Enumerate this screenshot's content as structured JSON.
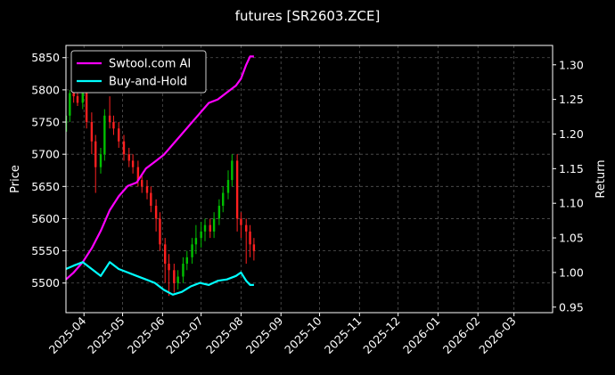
{
  "chart_data": {
    "type": "line",
    "title": "futures [SR2603.ZCE]",
    "ylabel": "Price",
    "y2label": "Return",
    "x_ticks": [
      "2025-04",
      "2025-05",
      "2025-06",
      "2025-07",
      "2025-08",
      "2025-09",
      "2025-10",
      "2025-11",
      "2025-12",
      "2026-01",
      "2026-02",
      "2026-03"
    ],
    "xlim": [
      "2025-03-18",
      "2026-03-31"
    ],
    "ylim": [
      5454,
      5869
    ],
    "y_ticks": [
      5500,
      5550,
      5600,
      5650,
      5700,
      5750,
      5800,
      5850
    ],
    "y2lim": [
      0.942,
      1.328
    ],
    "y2_ticks": [
      0.95,
      1.0,
      1.05,
      1.1,
      1.15,
      1.2,
      1.25,
      1.3
    ],
    "grid": true,
    "legend_position": "top-left",
    "candles": {
      "dates": [
        "2025-03-18",
        "2025-03-21",
        "2025-03-24",
        "2025-03-27",
        "2025-03-31",
        "2025-04-03",
        "2025-04-07",
        "2025-04-10",
        "2025-04-14",
        "2025-04-17",
        "2025-04-21",
        "2025-04-24",
        "2025-04-28",
        "2025-05-02",
        "2025-05-06",
        "2025-05-09",
        "2025-05-13",
        "2025-05-16",
        "2025-05-20",
        "2025-05-23",
        "2025-05-27",
        "2025-05-30",
        "2025-06-03",
        "2025-06-06",
        "2025-06-10",
        "2025-06-13",
        "2025-06-17",
        "2025-06-20",
        "2025-06-24",
        "2025-06-27",
        "2025-07-01",
        "2025-07-04",
        "2025-07-08",
        "2025-07-11",
        "2025-07-15",
        "2025-07-18",
        "2025-07-22",
        "2025-07-25",
        "2025-07-29",
        "2025-08-01",
        "2025-08-05",
        "2025-08-08",
        "2025-08-11"
      ],
      "open": [
        5735,
        5760,
        5795,
        5790,
        5780,
        5800,
        5750,
        5720,
        5680,
        5700,
        5760,
        5750,
        5740,
        5720,
        5700,
        5690,
        5680,
        5660,
        5650,
        5640,
        5620,
        5600,
        5560,
        5530,
        5520,
        5500,
        5510,
        5530,
        5540,
        5560,
        5570,
        5580,
        5590,
        5580,
        5600,
        5620,
        5640,
        5660,
        5690,
        5600,
        5590,
        5580,
        5560
      ],
      "close": [
        5760,
        5795,
        5790,
        5780,
        5800,
        5750,
        5720,
        5680,
        5700,
        5760,
        5750,
        5740,
        5720,
        5700,
        5690,
        5680,
        5660,
        5650,
        5640,
        5620,
        5600,
        5560,
        5530,
        5520,
        5500,
        5510,
        5530,
        5540,
        5560,
        5570,
        5580,
        5590,
        5580,
        5600,
        5620,
        5640,
        5660,
        5690,
        5600,
        5590,
        5580,
        5560,
        5550
      ],
      "high": [
        5770,
        5800,
        5815,
        5800,
        5810,
        5810,
        5765,
        5730,
        5710,
        5770,
        5790,
        5760,
        5750,
        5730,
        5710,
        5700,
        5690,
        5670,
        5660,
        5650,
        5630,
        5610,
        5570,
        5545,
        5530,
        5520,
        5540,
        5550,
        5570,
        5590,
        5595,
        5600,
        5600,
        5610,
        5630,
        5650,
        5675,
        5700,
        5700,
        5610,
        5600,
        5590,
        5570
      ],
      "low": [
        5725,
        5750,
        5780,
        5775,
        5770,
        5740,
        5700,
        5640,
        5670,
        5690,
        5740,
        5730,
        5710,
        5690,
        5680,
        5670,
        5650,
        5640,
        5630,
        5610,
        5580,
        5550,
        5500,
        5480,
        5485,
        5490,
        5500,
        5520,
        5530,
        5545,
        5555,
        5565,
        5570,
        5570,
        5590,
        5610,
        5630,
        5650,
        5580,
        5570,
        5530,
        5540,
        5535
      ]
    },
    "series": [
      {
        "name": "Swtool.com AI",
        "color": "#ff00ff",
        "dates": [
          "2025-03-18",
          "2025-03-24",
          "2025-03-31",
          "2025-04-07",
          "2025-04-14",
          "2025-04-21",
          "2025-04-28",
          "2025-05-05",
          "2025-05-12",
          "2025-05-19",
          "2025-05-26",
          "2025-06-02",
          "2025-06-09",
          "2025-06-16",
          "2025-06-23",
          "2025-06-30",
          "2025-07-07",
          "2025-07-14",
          "2025-07-21",
          "2025-07-28",
          "2025-08-01",
          "2025-08-05",
          "2025-08-08",
          "2025-08-11"
        ],
        "values": [
          0.99,
          1.0,
          1.015,
          1.035,
          1.06,
          1.09,
          1.11,
          1.125,
          1.13,
          1.15,
          1.16,
          1.17,
          1.185,
          1.2,
          1.215,
          1.23,
          1.245,
          1.25,
          1.26,
          1.27,
          1.28,
          1.3,
          1.312,
          1.312
        ]
      },
      {
        "name": "Buy-and-Hold",
        "color": "#00ffff",
        "dates": [
          "2025-03-18",
          "2025-03-24",
          "2025-03-31",
          "2025-04-07",
          "2025-04-14",
          "2025-04-21",
          "2025-04-28",
          "2025-05-05",
          "2025-05-12",
          "2025-05-19",
          "2025-05-26",
          "2025-06-02",
          "2025-06-09",
          "2025-06-16",
          "2025-06-23",
          "2025-06-30",
          "2025-07-07",
          "2025-07-14",
          "2025-07-21",
          "2025-07-28",
          "2025-08-01",
          "2025-08-05",
          "2025-08-08",
          "2025-08-11"
        ],
        "values": [
          1.005,
          1.01,
          1.015,
          1.005,
          0.995,
          1.015,
          1.005,
          1.0,
          0.995,
          0.99,
          0.985,
          0.975,
          0.968,
          0.972,
          0.98,
          0.985,
          0.982,
          0.988,
          0.99,
          0.995,
          1.0,
          0.988,
          0.982,
          0.982
        ]
      }
    ]
  },
  "colors": {
    "background": "#000000",
    "up": "#00c000",
    "down": "#ff2020",
    "grid": "#555555",
    "axis": "#ffffff"
  }
}
